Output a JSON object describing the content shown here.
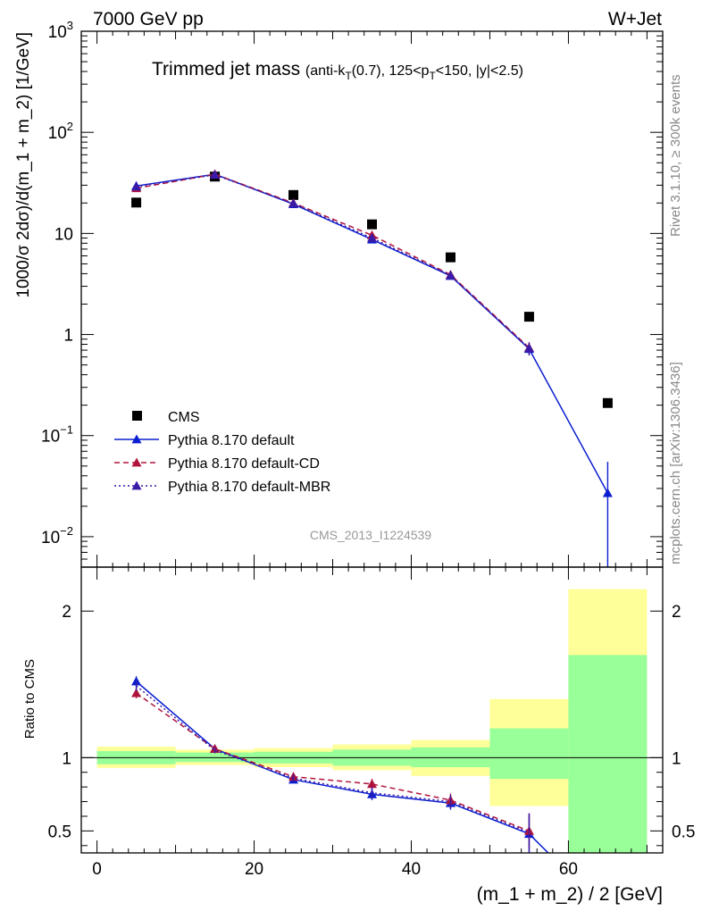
{
  "header": {
    "left": "7000 GeV pp",
    "right": "W+Jet"
  },
  "side_labels": {
    "rivet": "Rivet 3.1.10, ≥ 300k events",
    "mcplots": "mcplots.cern.ch [arXiv:1306.3436]"
  },
  "plot_title": {
    "main": "Trimmed jet mass",
    "detail": "(anti-k_T(0.7), 125<p_T<150, |y|<2.5)"
  },
  "watermark": "CMS_2013_I1224539",
  "chart_data": [
    {
      "type": "scatter",
      "panel": "main",
      "yscale": "log",
      "ylabel": "1000/σ 2dσ)/d(m_1 + m_2) [1/GeV]",
      "xlim": [
        -2,
        72
      ],
      "ylim": [
        0.005,
        1000
      ],
      "yticks": [
        0.01,
        0.1,
        1,
        10,
        100,
        1000
      ],
      "ytick_labels": [
        "10^-2",
        "10^-1",
        "1",
        "10",
        "10^2",
        "10^3"
      ],
      "legend_position": "lower-left",
      "series": [
        {
          "name": "CMS",
          "style": "data",
          "color": "#000000",
          "x": [
            5,
            15,
            25,
            35,
            45,
            55,
            65
          ],
          "y": [
            20.2,
            36.5,
            24.0,
            12.3,
            5.8,
            1.5,
            0.21
          ]
        },
        {
          "name": "Pythia 8.170 default",
          "style": "solid",
          "color": "#0b1fd0",
          "x": [
            5,
            15,
            25,
            35,
            45,
            55,
            65
          ],
          "y": [
            29.5,
            38.5,
            19.5,
            8.7,
            3.8,
            0.72,
            0.027
          ],
          "err": [
            0.5,
            0.6,
            0.4,
            0.3,
            0.2,
            0.1,
            0.028
          ]
        },
        {
          "name": "Pythia 8.170 default-CD",
          "style": "dashed",
          "color": "#b0143c",
          "x": [
            5,
            15,
            25,
            35,
            45,
            55
          ],
          "y": [
            28.0,
            38.5,
            20.0,
            9.6,
            3.9,
            0.74
          ],
          "err": [
            0.5,
            0.6,
            0.4,
            0.3,
            0.2,
            0.1
          ]
        },
        {
          "name": "Pythia 8.170 default-MBR",
          "style": "dotted",
          "color": "#3a1aa8",
          "x": [
            5,
            15,
            25,
            35,
            45,
            55
          ],
          "y": [
            29.0,
            38.0,
            19.8,
            9.0,
            3.85,
            0.73
          ],
          "err": [
            0.5,
            0.6,
            0.4,
            0.3,
            0.2,
            0.1
          ]
        }
      ]
    },
    {
      "type": "line",
      "panel": "ratio",
      "ylabel": "Ratio to CMS",
      "xlabel": "(m_1 + m_2) / 2 [GeV]",
      "xlim": [
        -2,
        72
      ],
      "ylim": [
        0.35,
        2.3
      ],
      "xticks": [
        0,
        20,
        40,
        60
      ],
      "yticks": [
        0.5,
        1,
        2
      ],
      "bands": [
        {
          "x0": 0,
          "x1": 10,
          "green": [
            0.955,
            1.045
          ],
          "yellow": [
            0.93,
            1.075
          ]
        },
        {
          "x0": 10,
          "x1": 20,
          "green": [
            0.97,
            1.035
          ],
          "yellow": [
            0.95,
            1.055
          ]
        },
        {
          "x0": 20,
          "x1": 30,
          "green": [
            0.96,
            1.04
          ],
          "yellow": [
            0.935,
            1.065
          ]
        },
        {
          "x0": 30,
          "x1": 40,
          "green": [
            0.945,
            1.055
          ],
          "yellow": [
            0.915,
            1.09
          ]
        },
        {
          "x0": 40,
          "x1": 50,
          "green": [
            0.935,
            1.07
          ],
          "yellow": [
            0.875,
            1.12
          ]
        },
        {
          "x0": 50,
          "x1": 60,
          "green": [
            0.855,
            1.2
          ],
          "yellow": [
            0.67,
            1.4
          ]
        },
        {
          "x0": 60,
          "x1": 70,
          "green": [
            0.3,
            1.7
          ],
          "yellow": [
            0.3,
            2.15
          ]
        }
      ],
      "series": [
        {
          "name": "Pythia 8.170 default",
          "style": "solid",
          "color": "#0b1fd0",
          "x": [
            5,
            15,
            25,
            35,
            45,
            55,
            57.8
          ],
          "y": [
            1.52,
            1.06,
            0.85,
            0.75,
            0.69,
            0.48,
            0.33
          ],
          "err": [
            0.035,
            0.02,
            0.025,
            0.04,
            0.045,
            0.13,
            0
          ],
          "markers": [
            true,
            true,
            true,
            true,
            true,
            true,
            false
          ]
        },
        {
          "name": "Pythia 8.170 default-CD",
          "style": "dashed",
          "color": "#b0143c",
          "x": [
            5,
            15,
            25,
            35,
            45,
            55
          ],
          "y": [
            1.44,
            1.06,
            0.87,
            0.82,
            0.71,
            0.5
          ],
          "err": [
            0.035,
            0.02,
            0.025,
            0.035,
            0.045,
            0.12
          ],
          "markers": [
            true,
            true,
            true,
            true,
            true,
            true
          ]
        },
        {
          "name": "Pythia 8.170 default-MBR",
          "style": "dotted",
          "color": "#3a1aa8",
          "x": [
            5,
            15,
            25,
            35,
            45,
            55
          ],
          "y": [
            1.49,
            1.05,
            0.86,
            0.76,
            0.7,
            0.49
          ],
          "err": [
            0.035,
            0.02,
            0.025,
            0.04,
            0.045,
            0.13
          ],
          "markers": [
            false,
            false,
            false,
            false,
            false,
            false
          ]
        }
      ]
    }
  ]
}
